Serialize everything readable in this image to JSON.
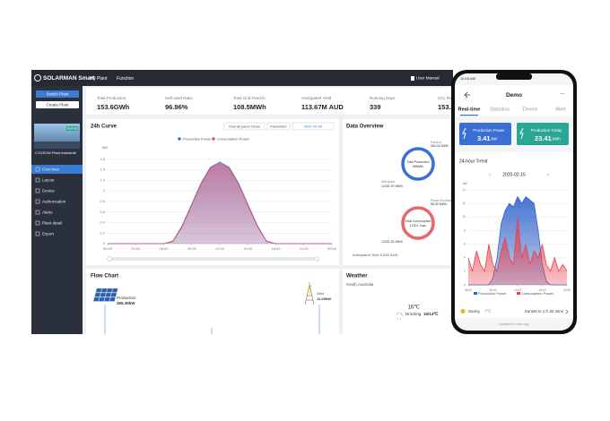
{
  "top_bar": {
    "brand": "SOLARMAN Smart",
    "nav": [
      "My Plant",
      "Function"
    ],
    "user_manual": "User Manual"
  },
  "sidebar": {
    "buttons": [
      "Switch Plant",
      "Create Plant"
    ],
    "plant": {
      "status": "Normal",
      "name": "CYGSXW Plant-Industrial"
    },
    "menu": [
      "Overview",
      "Layout",
      "Device",
      "Authorization",
      "Alerts",
      "Plant detail",
      "Export"
    ]
  },
  "stats": [
    {
      "label": "Total Production",
      "value": "153.6GWh"
    },
    {
      "label": "Self-used Ratio",
      "value": "96.96%"
    },
    {
      "label": "Total Grid Feed-in",
      "value": "108.5MWh"
    },
    {
      "label": "Anticipated Yield",
      "value": "113.67M AUD"
    },
    {
      "label": "Running Days",
      "value": "339"
    },
    {
      "label": "CO₂ Reduction",
      "value": "153.1"
    }
  ],
  "curve_panel": {
    "title": "24h Curve",
    "buttons": [
      "Overall panel Close",
      "Parameter"
    ],
    "date": "2021-09-09",
    "chart": {
      "type": "area",
      "y_label": "kW",
      "x": [
        0,
        1,
        2,
        3,
        4,
        5,
        6,
        7,
        8,
        9,
        10,
        11,
        12,
        13,
        14,
        15,
        16,
        17,
        18,
        19,
        20,
        21,
        22,
        23,
        24
      ],
      "series": [
        {
          "name": "Production Power",
          "color": "#3a6fd8",
          "values": [
            0,
            0,
            0,
            0,
            0,
            0,
            0,
            0.05,
            0.35,
            0.75,
            1.15,
            1.45,
            1.55,
            1.45,
            1.15,
            0.75,
            0.35,
            0.05,
            0,
            0,
            0,
            0,
            0,
            0,
            0
          ]
        },
        {
          "name": "Consumption Power",
          "color": "#e0566a",
          "values": [
            0,
            0,
            0,
            0,
            0,
            0,
            0,
            0.04,
            0.33,
            0.73,
            1.13,
            1.43,
            1.52,
            1.43,
            1.13,
            0.73,
            0.33,
            0.04,
            0,
            0,
            0,
            0,
            0,
            0,
            0
          ]
        }
      ],
      "xlim": [
        0,
        24
      ],
      "xticks": [
        {
          "value": 0,
          "label": "00:00"
        },
        {
          "value": 3,
          "label": "03:00"
        },
        {
          "value": 6,
          "label": "06:00"
        },
        {
          "value": 9,
          "label": "09:00"
        },
        {
          "value": 12,
          "label": "12:00"
        },
        {
          "value": 15,
          "label": "15:00"
        },
        {
          "value": 18,
          "label": "18:00"
        },
        {
          "value": 21,
          "label": "21:00"
        },
        {
          "value": 24,
          "label": "00:00"
        }
      ],
      "ylim": [
        0,
        1.7
      ],
      "yticks": [
        0,
        0.2,
        0.4,
        0.6,
        0.8,
        1,
        1.2,
        1.4,
        1.6
      ]
    }
  },
  "data_overview": {
    "title": "Data Overview",
    "production": {
      "label": "Total Production",
      "value": "98MWh"
    },
    "feed_in": {
      "label": "Feed-in",
      "value": "364.42 MWh"
    },
    "self_used": {
      "label": "Self-used",
      "value": "12201.67 MWh"
    },
    "consumption": {
      "label": "Total Consumption",
      "value": "12201 Yuan"
    },
    "purchase": {
      "label": "Power Purchase",
      "value": "58.09 MWh"
    },
    "consumption_total": "12201.52 MWh",
    "anticipated": "Anticipated Yield 9.33K AUD"
  },
  "flow_chart": {
    "title": "Flow Chart",
    "production": {
      "label": "Production",
      "value": "265.39kW"
    },
    "grid": {
      "label": "Grid",
      "value": "12.29kW"
    }
  },
  "weather": {
    "title": "Weather",
    "location": "South Australia",
    "temperature": "16℃",
    "condition": "Drizzling",
    "range": "16/14℃"
  },
  "phone": {
    "time": "10:16 AM",
    "title": "Demo",
    "tabs": [
      "Real-time",
      "Statistics",
      "Device",
      "Alert"
    ],
    "cards": [
      {
        "label": "Production Power",
        "value": "3.41",
        "unit": "kW",
        "color": "#3b6fd1"
      },
      {
        "label": "Production Today",
        "value": "23.41",
        "unit": "kWh",
        "color": "#2aa693"
      }
    ],
    "trend_title": "24-hour Trend",
    "date": "2020-02-15",
    "chart": {
      "type": "area",
      "y_label": "kW",
      "x": [
        0,
        1,
        2,
        3,
        4,
        5,
        6,
        7,
        8,
        9,
        10,
        11,
        12,
        13,
        14,
        15,
        16,
        17,
        18,
        19,
        20,
        21,
        22,
        23,
        24
      ],
      "series": [
        {
          "name": "Production Power",
          "color": "#3366cc",
          "values": [
            0,
            0,
            0,
            0,
            0,
            0,
            1,
            4,
            9,
            11,
            12,
            11.5,
            13,
            12,
            13,
            12.5,
            12,
            8,
            3,
            0.5,
            0,
            0,
            0,
            0,
            0
          ]
        },
        {
          "name": "Consumption Power",
          "color": "#e8434f",
          "values": [
            4,
            2,
            5,
            3,
            2,
            6,
            3,
            2,
            5,
            7,
            4,
            3,
            10,
            4,
            6,
            3,
            5,
            4,
            6,
            3,
            2,
            4,
            2,
            3,
            2
          ]
        }
      ],
      "xlim": [
        0,
        24
      ],
      "xticks": [
        {
          "value": 0,
          "label": "00:00"
        },
        {
          "value": 6,
          "label": "06:00"
        },
        {
          "value": 12,
          "label": "12:00"
        },
        {
          "value": 18,
          "label": "18:00"
        },
        {
          "value": 24,
          "label": "24:00"
        }
      ],
      "ylim": [
        0,
        14
      ],
      "yticks": [
        0,
        2,
        4,
        6,
        8,
        10,
        12,
        14
      ]
    },
    "weather": {
      "condition": "Sunny",
      "temperature": "7℃",
      "sunset": "Sunset in 1 h 32 mins"
    },
    "updated": "Updated 5 mins ago"
  }
}
